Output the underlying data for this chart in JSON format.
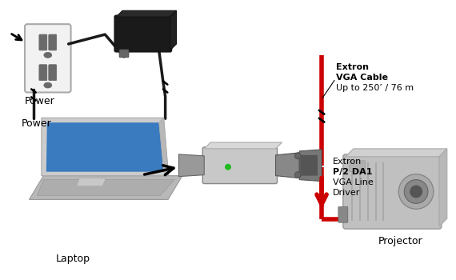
{
  "bg_color": "#ffffff",
  "label_power": "Power",
  "label_laptop": "Laptop",
  "label_projector": "Projector",
  "label_cable_line1": "Extron",
  "label_cable_line2": "VGA Cable",
  "label_cable_line3": "Up to 250’ / 76 m",
  "label_device_line1": "Extron",
  "label_device_line2": "P/2 DA1",
  "label_device_line3": "VGA Line",
  "label_device_line4": "Driver",
  "red_cable_color": "#cc0000",
  "black_cable_color": "#1a1a1a",
  "wall_facecolor": "#f2f2f2",
  "wall_edgecolor": "#aaaaaa",
  "adapter_color": "#1a1a1a",
  "adapter_highlight": "#3a3a3a",
  "laptop_body_color": "#b8b8b8",
  "laptop_screen_color": "#3a7abf",
  "laptop_screen_border": "#c8c8c8",
  "device_color": "#c8c8c8",
  "device_edge": "#888888",
  "connector_color": "#888888",
  "projector_color": "#c0c0c0",
  "projector_edge": "#999999",
  "text_color": "#000000",
  "text_bold_color": "#000000"
}
